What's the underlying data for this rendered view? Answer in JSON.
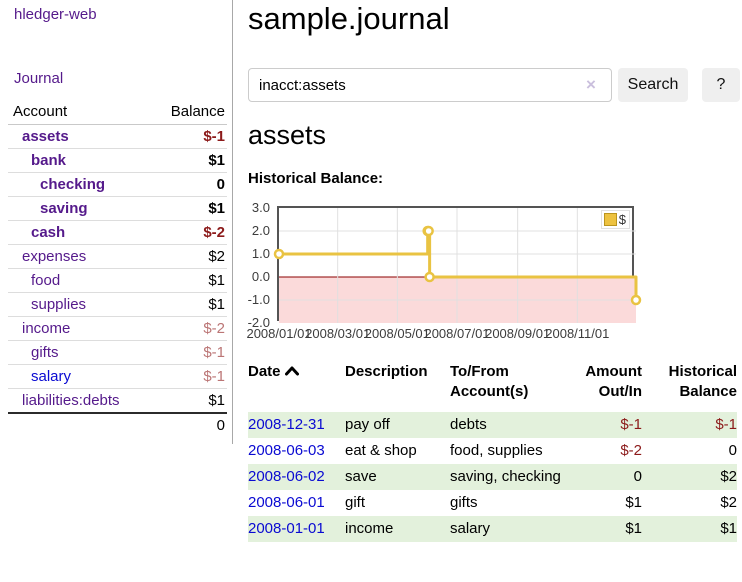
{
  "app": {
    "title": "hledger-web"
  },
  "sidebar": {
    "journal_link": "Journal",
    "columns": {
      "account": "Account",
      "balance": "Balance"
    },
    "accounts": [
      {
        "name": "assets",
        "level": 0,
        "bold": true,
        "balance": "$-1"
      },
      {
        "name": "bank",
        "level": 1,
        "bold": true,
        "balance": "$1"
      },
      {
        "name": "checking",
        "level": 2,
        "bold": true,
        "balance": "0"
      },
      {
        "name": "saving",
        "level": 2,
        "bold": true,
        "balance": "$1"
      },
      {
        "name": "cash",
        "level": 1,
        "bold": true,
        "balance": "$-2"
      },
      {
        "name": "expenses",
        "level": 0,
        "bold": false,
        "balance": "$2"
      },
      {
        "name": "food",
        "level": 1,
        "bold": false,
        "balance": "$1"
      },
      {
        "name": "supplies",
        "level": 1,
        "bold": false,
        "balance": "$1"
      },
      {
        "name": "income",
        "level": 0,
        "bold": false,
        "balance": "$-2"
      },
      {
        "name": "gifts",
        "level": 1,
        "bold": false,
        "balance": "$-1"
      },
      {
        "name": "salary",
        "level": 1,
        "bold": false,
        "balance": "$-1",
        "unvisited": true
      },
      {
        "name": "liabilities:debts",
        "level": 0,
        "bold": false,
        "balance": "$1"
      }
    ],
    "total": "0"
  },
  "header": {
    "title": "sample.journal"
  },
  "search": {
    "value": "inacct:assets",
    "clear_icon": "×",
    "button_label": "Search",
    "help_label": "?"
  },
  "account_page": {
    "title": "assets",
    "chart_heading": "Historical Balance:"
  },
  "chart_data": {
    "type": "line",
    "step": true,
    "title": "Historical Balance",
    "series": [
      {
        "name": "$",
        "color": "#e9c342",
        "points": [
          [
            "2008-01-01",
            1
          ],
          [
            "2008-06-01",
            2
          ],
          [
            "2008-06-02",
            2
          ],
          [
            "2008-06-03",
            0
          ],
          [
            "2008-12-31",
            -1
          ]
        ]
      }
    ],
    "x_range": [
      "2008-01-01",
      "2008-12-31"
    ],
    "x_ticks": [
      "2008/01/01",
      "2008/03/01",
      "2008/05/01",
      "2008/07/01",
      "2008/09/01",
      "2008/11/01"
    ],
    "y_ticks": [
      3.0,
      2.0,
      1.0,
      0.0,
      -1.0,
      -2.0
    ],
    "ylim": [
      -2,
      3
    ],
    "grid": true,
    "legend_position": "top-right",
    "negative_region_color": "#fbdada",
    "zero_line_color": "#8b0000",
    "grid_color": "#e0e0e0"
  },
  "register": {
    "columns": {
      "date": "Date",
      "description": "Description",
      "accounts": "To/From Account(s)",
      "amount": "Amount Out/In",
      "balance": "Historical Balance"
    },
    "sort": "date ascending",
    "rows": [
      {
        "date": "2008-12-31",
        "description": "pay off",
        "accounts": "debts",
        "amount": "$-1",
        "balance": "$-1"
      },
      {
        "date": "2008-06-03",
        "description": "eat & shop",
        "accounts": "food, supplies",
        "amount": "$-2",
        "balance": "0"
      },
      {
        "date": "2008-06-02",
        "description": "save",
        "accounts": "saving, checking",
        "amount": "0",
        "balance": "$2"
      },
      {
        "date": "2008-06-01",
        "description": "gift",
        "accounts": "gifts",
        "amount": "$1",
        "balance": "$2"
      },
      {
        "date": "2008-01-01",
        "description": "income",
        "accounts": "salary",
        "amount": "$1",
        "balance": "$1"
      }
    ]
  }
}
